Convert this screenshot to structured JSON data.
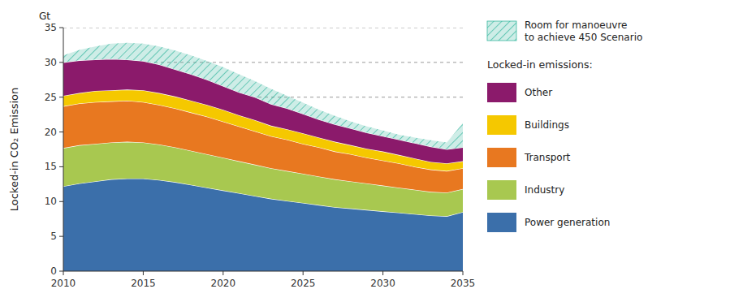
{
  "chart_data": {
    "type": "area",
    "stacked": true,
    "ylabel": "Locked-in CO₂ Emission",
    "annotations": [
      {
        "text": "Gt"
      }
    ],
    "legend_title": "Locked-in emissions:",
    "grid": false,
    "x": [
      2010,
      2011,
      2012,
      2013,
      2014,
      2015,
      2016,
      2017,
      2018,
      2019,
      2020,
      2021,
      2022,
      2023,
      2024,
      2025,
      2026,
      2027,
      2028,
      2029,
      2030,
      2031,
      2032,
      2033,
      2034,
      2035
    ],
    "series": [
      {
        "name": "Power generation",
        "color": "#3b6faa",
        "values": [
          12.2,
          12.6,
          12.9,
          13.2,
          13.3,
          13.3,
          13.1,
          12.8,
          12.4,
          12.0,
          11.6,
          11.2,
          10.8,
          10.4,
          10.1,
          9.8,
          9.5,
          9.2,
          9.0,
          8.8,
          8.6,
          8.4,
          8.2,
          8.0,
          7.9,
          8.5
        ]
      },
      {
        "name": "Industry",
        "color": "#a8c850",
        "values": [
          5.5,
          5.5,
          5.4,
          5.3,
          5.3,
          5.2,
          5.1,
          5.0,
          4.9,
          4.8,
          4.7,
          4.6,
          4.5,
          4.4,
          4.3,
          4.2,
          4.1,
          4.0,
          3.9,
          3.8,
          3.7,
          3.6,
          3.5,
          3.4,
          3.4,
          3.3
        ]
      },
      {
        "name": "Transport",
        "color": "#e87820",
        "values": [
          6.0,
          6.0,
          6.0,
          5.9,
          5.9,
          5.8,
          5.7,
          5.6,
          5.5,
          5.4,
          5.2,
          5.0,
          4.8,
          4.6,
          4.5,
          4.3,
          4.2,
          4.0,
          3.9,
          3.7,
          3.6,
          3.5,
          3.3,
          3.2,
          3.1,
          3.0
        ]
      },
      {
        "name": "Buildings",
        "color": "#f5c800",
        "values": [
          1.5,
          1.5,
          1.6,
          1.6,
          1.6,
          1.7,
          1.7,
          1.7,
          1.7,
          1.7,
          1.7,
          1.6,
          1.6,
          1.5,
          1.5,
          1.5,
          1.4,
          1.4,
          1.3,
          1.3,
          1.3,
          1.2,
          1.2,
          1.1,
          1.1,
          1.0
        ]
      },
      {
        "name": "Other",
        "color": "#8b1a6b",
        "values": [
          4.8,
          4.7,
          4.5,
          4.5,
          4.3,
          4.2,
          4.1,
          3.9,
          3.8,
          3.6,
          3.4,
          3.3,
          3.3,
          3.1,
          3.0,
          2.8,
          2.6,
          2.5,
          2.4,
          2.3,
          2.2,
          2.2,
          2.2,
          2.2,
          2.0,
          2.0
        ]
      },
      {
        "name": "Room for manoeuvre\nto achieve 450 Scenario",
        "type": "band",
        "color": "#3ab8a0",
        "values": [
          31.0,
          31.8,
          32.3,
          32.7,
          32.8,
          32.7,
          32.3,
          31.7,
          31.0,
          30.2,
          29.3,
          28.3,
          27.3,
          26.2,
          25.2,
          24.2,
          23.2,
          22.3,
          21.5,
          20.8,
          20.2,
          19.6,
          19.2,
          18.8,
          18.5,
          21.3
        ]
      }
    ],
    "reference_lines": [
      35,
      30,
      25
    ],
    "xlim": [
      2010,
      2035
    ],
    "ylim": [
      0,
      35
    ],
    "xticks": [
      2010,
      2015,
      2020,
      2025,
      2030,
      2035
    ],
    "yticks": [
      0,
      5,
      10,
      15,
      20,
      25,
      30,
      35
    ]
  }
}
